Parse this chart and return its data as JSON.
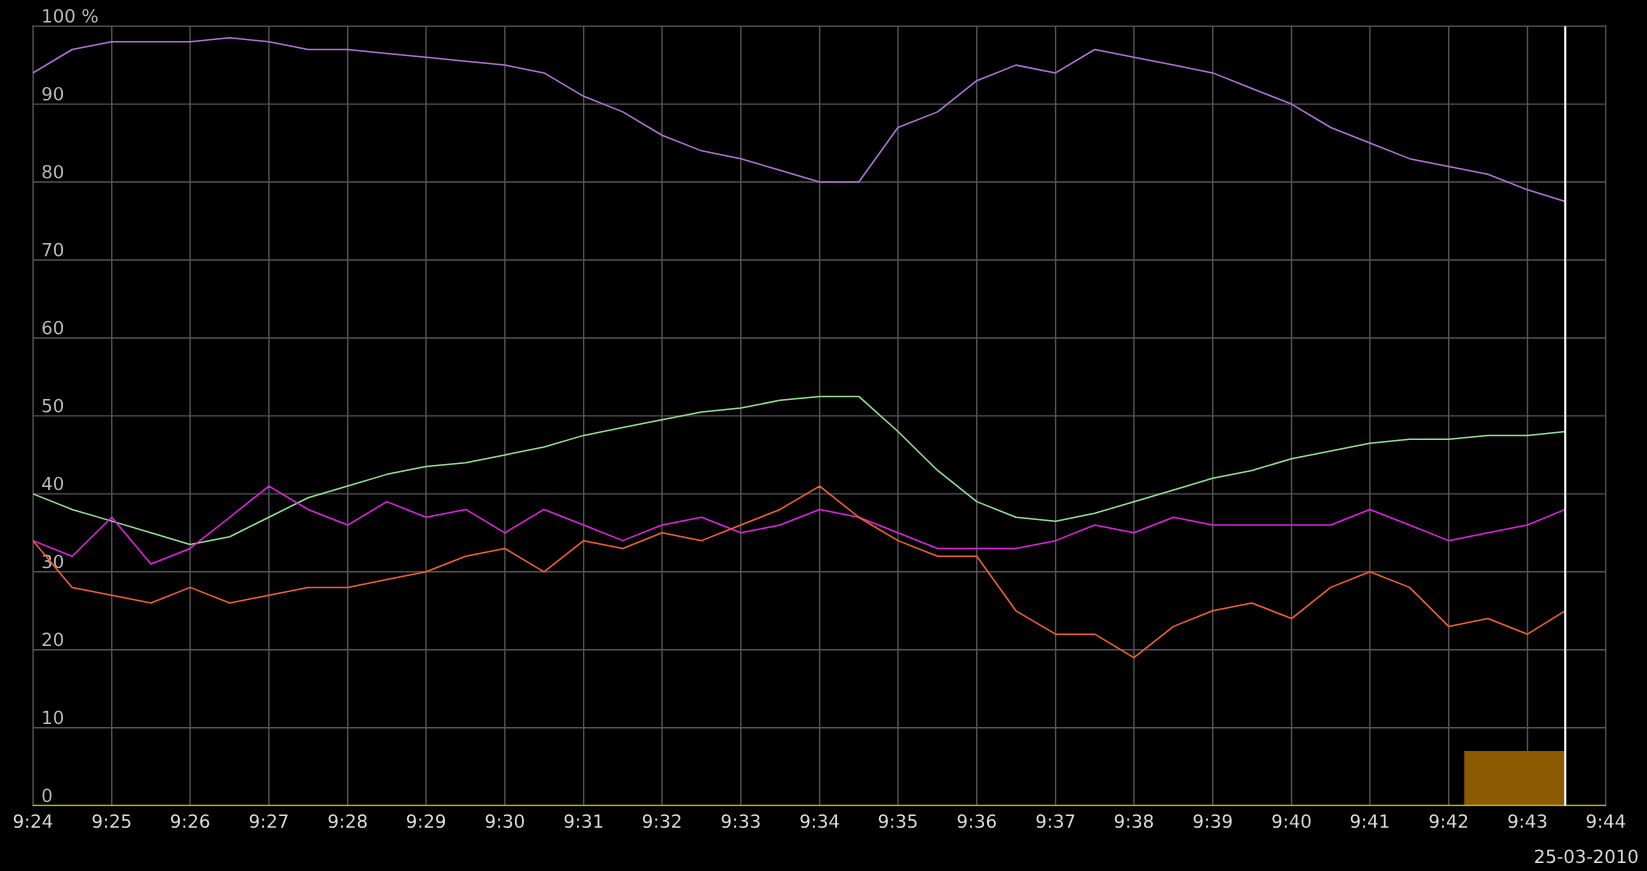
{
  "chart_data": {
    "type": "line",
    "x": [
      9.4,
      9.4083,
      9.4167,
      9.425,
      9.4333,
      9.4417,
      9.45,
      9.4583,
      9.4667,
      9.475,
      9.4833,
      9.4917,
      9.5,
      9.5083,
      9.5167,
      9.525,
      9.5333,
      9.5417,
      9.55,
      9.5583,
      9.5667,
      9.575,
      9.5833,
      9.5917,
      9.6,
      9.6083,
      9.6167,
      9.625,
      9.6333,
      9.6417,
      9.65,
      9.6583,
      9.6667,
      9.675,
      9.6833,
      9.6917,
      9.7,
      9.7083,
      9.7167,
      9.7247
    ],
    "series": [
      {
        "color": "#b070d8",
        "values": [
          94,
          97,
          98,
          98,
          98,
          98.5,
          98,
          97,
          97,
          96.5,
          96,
          95.5,
          95,
          94,
          91,
          89,
          86,
          84,
          83,
          81.5,
          80,
          80,
          87,
          89,
          93,
          95,
          94,
          97,
          96,
          95,
          94,
          92,
          90,
          87,
          85,
          83,
          82,
          81,
          79,
          77.5
        ]
      },
      {
        "color": "#90e090",
        "values": [
          40,
          38,
          36.5,
          35,
          33.5,
          34.5,
          37,
          39.5,
          41,
          42.5,
          43.5,
          44,
          45,
          46,
          47.5,
          48.5,
          49.5,
          50.5,
          51,
          52,
          52.5,
          52.5,
          48,
          43,
          39,
          37,
          36.5,
          37.5,
          39,
          40.5,
          42,
          43,
          44.5,
          45.5,
          46.5,
          47,
          47,
          47.5,
          47.5,
          48
        ]
      },
      {
        "color": "#e020e0",
        "values": [
          34,
          32,
          37,
          31,
          33,
          37,
          41,
          38,
          36,
          39,
          37,
          38,
          35,
          38,
          36,
          34,
          36,
          37,
          35,
          36,
          38,
          37,
          35,
          33,
          33,
          33,
          34,
          36,
          35,
          37,
          36,
          36,
          36,
          36,
          38,
          36,
          34,
          35,
          36,
          38
        ]
      },
      {
        "color": "#f06030",
        "values": [
          34,
          28,
          27,
          26,
          28,
          26,
          27,
          28,
          28,
          29,
          30,
          32,
          33,
          30,
          34,
          33,
          35,
          34,
          36,
          38,
          41,
          37,
          34,
          32,
          32,
          25,
          22,
          22,
          19,
          23,
          25,
          26,
          24,
          28,
          30,
          28,
          23,
          24,
          22,
          25
        ]
      },
      {
        "type": "area",
        "color": "#8b5a00",
        "x": [
          9.7033,
          9.7247
        ],
        "values": [
          7,
          7
        ]
      }
    ],
    "xlim": [
      9.4,
      9.7333
    ],
    "ylim": [
      0,
      100
    ],
    "xticks": [
      {
        "value": 9.4,
        "label": "9:24"
      },
      {
        "value": 9.4167,
        "label": "9:25"
      },
      {
        "value": 9.4333,
        "label": "9:26"
      },
      {
        "value": 9.45,
        "label": "9:27"
      },
      {
        "value": 9.4667,
        "label": "9:28"
      },
      {
        "value": 9.4833,
        "label": "9:29"
      },
      {
        "value": 9.5,
        "label": "9:30"
      },
      {
        "value": 9.5167,
        "label": "9:31"
      },
      {
        "value": 9.5333,
        "label": "9:32"
      },
      {
        "value": 9.55,
        "label": "9:33"
      },
      {
        "value": 9.5667,
        "label": "9:34"
      },
      {
        "value": 9.5833,
        "label": "9:35"
      },
      {
        "value": 9.6,
        "label": "9:36"
      },
      {
        "value": 9.6167,
        "label": "9:37"
      },
      {
        "value": 9.6333,
        "label": "9:38"
      },
      {
        "value": 9.65,
        "label": "9:39"
      },
      {
        "value": 9.6667,
        "label": "9:40"
      },
      {
        "value": 9.6833,
        "label": "9:41"
      },
      {
        "value": 9.7,
        "label": "9:42"
      },
      {
        "value": 9.7167,
        "label": "9:43"
      },
      {
        "value": 9.7333,
        "label": "9:44"
      }
    ],
    "yticks": [
      0,
      10,
      20,
      30,
      40,
      50,
      60,
      70,
      80,
      90,
      {
        "value": 100,
        "label": "100 %"
      }
    ],
    "grid": true,
    "ref_lines": [
      {
        "axis": "y",
        "value": 0,
        "color": "#e0d000"
      },
      {
        "axis": "x",
        "value": 9.7247,
        "color": "#ffffff"
      }
    ],
    "annotations": [
      "25-03-2010"
    ]
  }
}
